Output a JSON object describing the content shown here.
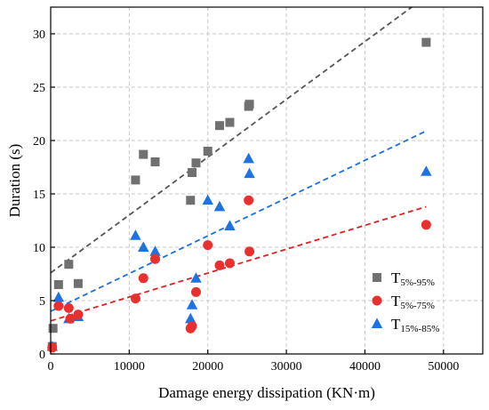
{
  "chart_data": {
    "type": "scatter",
    "xlabel": "Damage energy dissipation (KN·m)",
    "ylabel": "Duration (s)",
    "xlim": [
      0,
      55000
    ],
    "ylim": [
      0,
      32.5
    ],
    "xticks": [
      0,
      10000,
      20000,
      30000,
      40000,
      50000
    ],
    "yticks": [
      0,
      5,
      10,
      15,
      20,
      25,
      30
    ],
    "grid": "dashed",
    "legend_position": "bottom-right",
    "series": [
      {
        "name": "T",
        "name_sub": "5%-95%",
        "marker": "square",
        "color": "#707070",
        "fit_color": "#555555",
        "points": [
          [
            200,
            0.7
          ],
          [
            300,
            2.4
          ],
          [
            1000,
            6.5
          ],
          [
            2300,
            8.4
          ],
          [
            3500,
            6.6
          ],
          [
            10800,
            16.3
          ],
          [
            11800,
            18.7
          ],
          [
            13300,
            18.0
          ],
          [
            17800,
            14.4
          ],
          [
            18000,
            17.0
          ],
          [
            18500,
            17.9
          ],
          [
            20000,
            19.0
          ],
          [
            21500,
            21.4
          ],
          [
            22800,
            21.7
          ],
          [
            25200,
            23.2
          ],
          [
            25300,
            23.4
          ],
          [
            47800,
            29.2
          ]
        ],
        "fit": [
          [
            0,
            7.6
          ],
          [
            47800,
            33.5
          ]
        ]
      },
      {
        "name": "T",
        "name_sub": "5%-75%",
        "marker": "circle",
        "color": "#e8302f",
        "fit_color": "#e02020",
        "points": [
          [
            200,
            0.6
          ],
          [
            1000,
            4.5
          ],
          [
            2300,
            4.3
          ],
          [
            2500,
            3.3
          ],
          [
            3500,
            3.7
          ],
          [
            10800,
            5.2
          ],
          [
            11800,
            7.1
          ],
          [
            13300,
            8.9
          ],
          [
            17800,
            2.4
          ],
          [
            18000,
            2.6
          ],
          [
            18500,
            5.8
          ],
          [
            20000,
            10.2
          ],
          [
            21500,
            8.3
          ],
          [
            22800,
            8.5
          ],
          [
            25200,
            14.4
          ],
          [
            25300,
            9.6
          ],
          [
            47800,
            12.1
          ]
        ],
        "fit": [
          [
            0,
            3.1
          ],
          [
            47800,
            13.8
          ]
        ]
      },
      {
        "name": "T",
        "name_sub": "15%-85%",
        "marker": "triangle",
        "color": "#1f73e0",
        "fit_color": "#1a6fe0",
        "points": [
          [
            200,
            0.7
          ],
          [
            1000,
            5.3
          ],
          [
            2300,
            3.3
          ],
          [
            3500,
            3.5
          ],
          [
            10800,
            11.1
          ],
          [
            11800,
            10.0
          ],
          [
            13300,
            9.6
          ],
          [
            17800,
            3.3
          ],
          [
            18000,
            4.6
          ],
          [
            18500,
            7.1
          ],
          [
            20000,
            14.4
          ],
          [
            21500,
            13.8
          ],
          [
            22800,
            12.0
          ],
          [
            25200,
            18.3
          ],
          [
            25300,
            16.9
          ],
          [
            47800,
            17.1
          ]
        ],
        "fit": [
          [
            0,
            4.0
          ],
          [
            47800,
            20.9
          ]
        ]
      }
    ]
  }
}
